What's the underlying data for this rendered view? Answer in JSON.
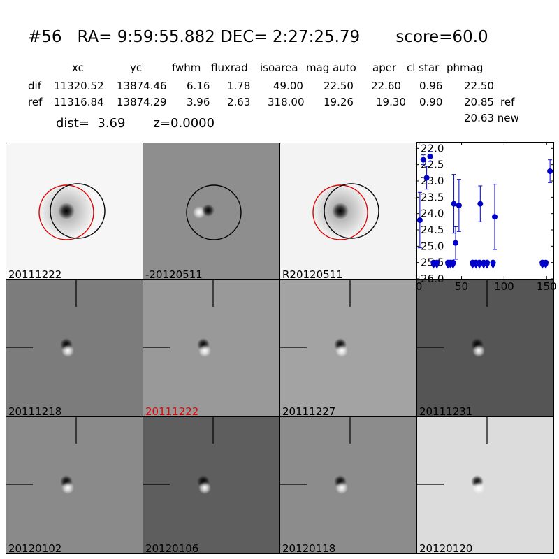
{
  "title": {
    "id": "#56",
    "coords": "RA= 9:59:55.882 DEC= 2:27:25.79",
    "score": "score=60.0"
  },
  "table": {
    "headers": [
      "xc",
      "yc",
      "fwhm",
      "fluxrad",
      "isoarea",
      "mag auto",
      "aper",
      "cl star",
      "phmag"
    ],
    "rows": [
      {
        "label": "dif",
        "values": [
          "11320.52",
          "13874.46",
          "6.16",
          "1.78",
          "49.00",
          "22.50",
          "22.60",
          "0.96",
          "22.50"
        ],
        "suffix": ""
      },
      {
        "label": "ref",
        "values": [
          "11316.84",
          "13874.29",
          "3.96",
          "2.63",
          "318.00",
          "19.26",
          "19.30",
          "0.90",
          "20.85"
        ],
        "suffix": "ref"
      }
    ],
    "phmag_new": "20.63 new"
  },
  "dist": "dist=  3.69",
  "z": "z=0.0000",
  "panels": [
    {
      "id": "p1",
      "label": "20111222",
      "bg": "#f6f6f6",
      "label_color": "black",
      "kind": "ref-circles"
    },
    {
      "id": "p2",
      "label": "-20120511",
      "bg": "#8e8e8e",
      "label_color": "black",
      "kind": "diff-circle"
    },
    {
      "id": "p3",
      "label": "R20120511",
      "bg": "#f3f3f3",
      "label_color": "black",
      "kind": "ref-circles"
    },
    {
      "id": "p5",
      "label": "20111218",
      "bg": "#7c7c7c",
      "label_color": "black",
      "kind": "stamp"
    },
    {
      "id": "p6",
      "label": "20111222",
      "bg": "#999999",
      "label_color": "red",
      "kind": "stamp"
    },
    {
      "id": "p7",
      "label": "20111227",
      "bg": "#a3a3a3",
      "label_color": "black",
      "kind": "stamp"
    },
    {
      "id": "p8",
      "label": "20111231",
      "bg": "#555555",
      "label_color": "black",
      "kind": "stamp"
    },
    {
      "id": "p9",
      "label": "20120102",
      "bg": "#8a8a8a",
      "label_color": "black",
      "kind": "stamp"
    },
    {
      "id": "p10",
      "label": "20120106",
      "bg": "#5e5e5e",
      "label_color": "black",
      "kind": "stamp"
    },
    {
      "id": "p11",
      "label": "20120118",
      "bg": "#8c8c8c",
      "label_color": "black",
      "kind": "stamp"
    },
    {
      "id": "p12",
      "label": "20120120",
      "bg": "#dcdcdc",
      "label_color": "black",
      "kind": "stamp"
    }
  ],
  "colors": {
    "ref_circle": "#e00000",
    "det_circle": "#000000",
    "points": "#0000cc"
  },
  "chart_data": {
    "type": "scatter",
    "title": "",
    "xlabel": "",
    "ylabel": "",
    "xlim": [
      -3,
      158
    ],
    "ylim": [
      26.0,
      21.8
    ],
    "y_inverted": true,
    "xticks": [
      "0",
      "50",
      "100",
      "150"
    ],
    "xtick_values": [
      0,
      50,
      100,
      150
    ],
    "yticks": [
      "22.0",
      "22.5",
      "23.0",
      "23.5",
      "24.0",
      "24.5",
      "25.0",
      "25.5",
      "26.0"
    ],
    "ytick_values": [
      22.0,
      22.5,
      23.0,
      23.5,
      24.0,
      24.5,
      25.0,
      25.5,
      26.0
    ],
    "points": [
      {
        "x": 1,
        "y": 24.2,
        "err": 0.85
      },
      {
        "x": 5,
        "y": 22.35,
        "err": 0.15
      },
      {
        "x": 9,
        "y": 22.9,
        "err": 0.35
      },
      {
        "x": 13,
        "y": 22.25,
        "err": 0.15
      },
      {
        "x": 17,
        "y": 25.5,
        "err": 0
      },
      {
        "x": 21,
        "y": 25.5,
        "err": 0
      },
      {
        "x": 34,
        "y": 25.5,
        "err": 0
      },
      {
        "x": 37,
        "y": 25.5,
        "err": 0
      },
      {
        "x": 40,
        "y": 25.5,
        "err": 0
      },
      {
        "x": 41,
        "y": 23.7,
        "err": 0.9
      },
      {
        "x": 43,
        "y": 24.9,
        "err": 0.5
      },
      {
        "x": 47,
        "y": 23.75,
        "err": 0.8
      },
      {
        "x": 63,
        "y": 25.5,
        "err": 0
      },
      {
        "x": 67,
        "y": 25.5,
        "err": 0
      },
      {
        "x": 71,
        "y": 25.5,
        "err": 0
      },
      {
        "x": 72,
        "y": 23.7,
        "err": 0.55
      },
      {
        "x": 76,
        "y": 25.5,
        "err": 0
      },
      {
        "x": 80,
        "y": 25.5,
        "err": 0
      },
      {
        "x": 87,
        "y": 25.5,
        "err": 0
      },
      {
        "x": 89,
        "y": 24.1,
        "err": 1.0
      },
      {
        "x": 145,
        "y": 25.5,
        "err": 0
      },
      {
        "x": 149,
        "y": 25.5,
        "err": 0
      },
      {
        "x": 154,
        "y": 22.7,
        "err": 0.35
      }
    ]
  }
}
